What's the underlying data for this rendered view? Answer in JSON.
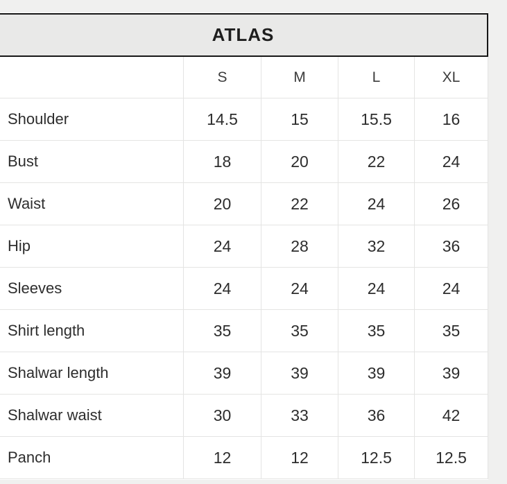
{
  "chart_data": {
    "type": "table",
    "title": "ATLAS",
    "size_headers": [
      "S",
      "M",
      "L",
      "XL"
    ],
    "rows": [
      {
        "label": "Shoulder",
        "values": [
          "14.5",
          "15",
          "15.5",
          "16"
        ]
      },
      {
        "label": "Bust",
        "values": [
          "18",
          "20",
          "22",
          "24"
        ]
      },
      {
        "label": "Waist",
        "values": [
          "20",
          "22",
          "24",
          "26"
        ]
      },
      {
        "label": "Hip",
        "values": [
          "24",
          "28",
          "32",
          "36"
        ]
      },
      {
        "label": "Sleeves",
        "values": [
          "24",
          "24",
          "24",
          "24"
        ]
      },
      {
        "label": "Shirt length",
        "values": [
          "35",
          "35",
          "35",
          "35"
        ]
      },
      {
        "label": "Shalwar length",
        "values": [
          "39",
          "39",
          "39",
          "39"
        ]
      },
      {
        "label": "Shalwar waist",
        "values": [
          "30",
          "33",
          "36",
          "42"
        ]
      },
      {
        "label": "Panch",
        "values": [
          "12",
          "12",
          "12.5",
          "12.5"
        ]
      }
    ]
  },
  "colors": {
    "banner_background": "#e9e9e8",
    "banner_border": "#161616",
    "page_margin": "#f0f0ef",
    "grid_line": "#e4e4e3",
    "text": "#2d2d2d"
  }
}
